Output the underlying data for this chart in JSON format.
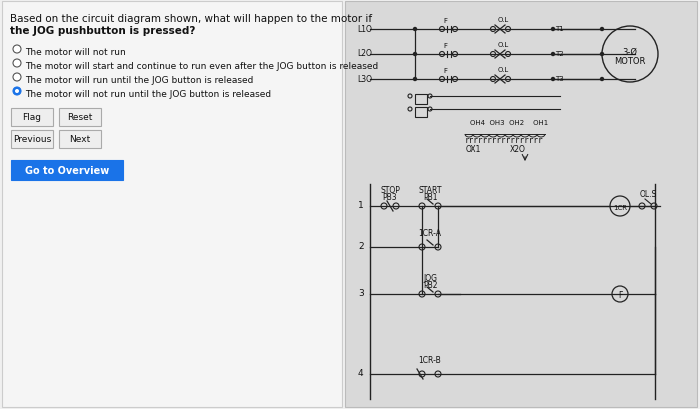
{
  "bg_color": "#f0f0f0",
  "title_line1": "Based on the circuit diagram shown, what will happen to the motor if",
  "title_line2": "the JOG pushbutton is pressed?",
  "options": [
    "The motor will not run",
    "The motor will start and continue to run even after the JOG button is released",
    "The motor will run until the JOG button is released",
    "The motor will not run until the JOG button is released"
  ],
  "selected_option": 3,
  "button_labels": [
    "Flag",
    "Reset",
    "Previous",
    "Next",
    "Go to Overview"
  ],
  "panel_bg": "#e8e8e8",
  "circuit_bg": "#d8d8d8",
  "line_color": "#222222",
  "text_color": "#111111"
}
